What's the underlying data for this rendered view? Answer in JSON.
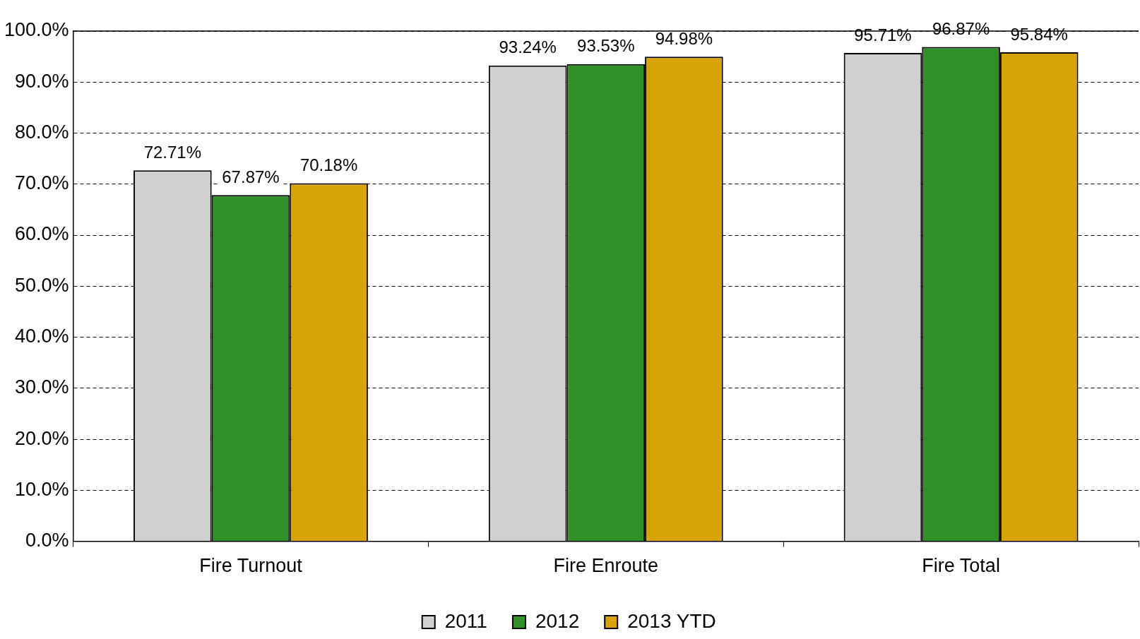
{
  "chart_data": {
    "type": "bar",
    "categories": [
      "Fire Turnout",
      "Fire Enroute",
      "Fire Total"
    ],
    "series": [
      {
        "name": "2011",
        "color": "#d0d0d0",
        "values": [
          72.71,
          93.24,
          95.71
        ],
        "value_labels": [
          "72.71%",
          "93.24%",
          "95.71%"
        ]
      },
      {
        "name": "2012",
        "color": "#319028",
        "values": [
          67.87,
          93.53,
          96.87
        ],
        "value_labels": [
          "67.87%",
          "93.53%",
          "96.87%"
        ]
      },
      {
        "name": "2013 YTD",
        "color": "#d6a404",
        "values": [
          70.18,
          94.98,
          95.84
        ],
        "value_labels": [
          "70.18%",
          "94.98%",
          "95.84%"
        ]
      }
    ],
    "ylim": [
      0,
      100
    ],
    "yticks": [
      {
        "value": 0,
        "label": "0.0%"
      },
      {
        "value": 10,
        "label": "10.0%"
      },
      {
        "value": 20,
        "label": "20.0%"
      },
      {
        "value": 30,
        "label": "30.0%"
      },
      {
        "value": 40,
        "label": "40.0%"
      },
      {
        "value": 50,
        "label": "50.0%"
      },
      {
        "value": 60,
        "label": "60.0%"
      },
      {
        "value": 70,
        "label": "70.0%"
      },
      {
        "value": 80,
        "label": "80.0%"
      },
      {
        "value": 90,
        "label": "90.0%"
      },
      {
        "value": 100,
        "label": "100.0%"
      }
    ],
    "grid": "y",
    "legend": "bottom"
  }
}
